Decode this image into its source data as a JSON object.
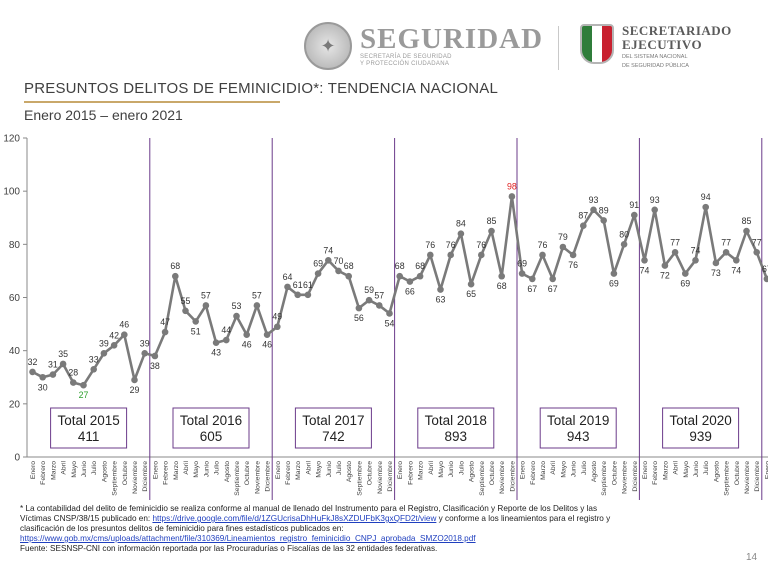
{
  "header": {
    "brand": "SEGURIDAD",
    "brand_sub_1": "SECRETARÍA DE SEGURIDAD",
    "brand_sub_2": "Y PROTECCIÓN CIUDADANA",
    "sesnsp_1": "SECRETARIADO",
    "sesnsp_2": "EJECUTIVO",
    "sesnsp_3": "DEL SISTEMA NACIONAL",
    "sesnsp_4": "DE SEGURIDAD PÚBLICA"
  },
  "title": "PRESUNTOS DELITOS DE FEMINICIDIO*: TENDENCIA NACIONAL",
  "subtitle": "Enero 2015 – enero 2021",
  "footnote": {
    "line1": "* La contabilidad del delito de feminicidio se realiza conforme al manual de llenado del Instrumento para el Registro, Clasificación y Reporte de los Delitos y las",
    "line2_pre": "Víctimas CNSP/38/15 publicado en: ",
    "link1": "https://drive.google.com/file/d/1ZGUcrisaDhHuFkJ8sXZDUFbK3gxQFD2t/view",
    "line2_post": " y conforme a los lineamientos para el registro y",
    "line3": "clasificación de los presuntos delitos de feminicidio para fines estadísticos publicados en:",
    "link2": "https://www.gob.mx/cms/uploads/attachment/file/310369/Lineamientos_registro_feminicidio_CNPJ_aprobada_SMZO2018.pdf",
    "line5": "Fuente: SESNSP-CNI con información reportada por las Procuradurías o Fiscalías de las 32 entidades federativas."
  },
  "page_number": "14",
  "chart_data": {
    "type": "line",
    "title": "PRESUNTOS DELITOS DE FEMINICIDIO*: TENDENCIA NACIONAL",
    "xlabel": "",
    "ylabel": "",
    "ylim": [
      0,
      120
    ],
    "yticks": [
      "0",
      "20",
      "40",
      "60",
      "80",
      "100",
      "120"
    ],
    "grid": false,
    "line_color": "#7a7a7a",
    "separator_color": "#6b3b8a",
    "months": [
      "Enero",
      "Febrero",
      "Marzo",
      "Abril",
      "Mayo",
      "Junio",
      "Julio",
      "Agosto",
      "Septiembre",
      "Octubre",
      "Noviembre",
      "Diciembre"
    ],
    "series": [
      {
        "name": "Presuntos delitos de feminicidio",
        "values": [
          32,
          30,
          31,
          35,
          28,
          27,
          33,
          39,
          42,
          46,
          29,
          39,
          38,
          47,
          68,
          55,
          51,
          57,
          43,
          44,
          53,
          46,
          57,
          46,
          49,
          64,
          61,
          61,
          69,
          74,
          70,
          68,
          56,
          59,
          57,
          54,
          68,
          66,
          68,
          76,
          63,
          76,
          84,
          65,
          76,
          85,
          68,
          98,
          69,
          67,
          76,
          67,
          79,
          76,
          87,
          93,
          89,
          69,
          80,
          91,
          74,
          93,
          72,
          77,
          69,
          74,
          94,
          73,
          77,
          74,
          85,
          77,
          67
        ]
      }
    ],
    "highlight": {
      "max": {
        "index": 47,
        "value": 98,
        "color": "#e02020"
      },
      "min": {
        "index": 5,
        "value": 27,
        "color": "#2ca02c"
      }
    },
    "years": [
      {
        "year": "2015",
        "total_label": "Total 2015",
        "total": "411"
      },
      {
        "year": "2016",
        "total_label": "Total 2016",
        "total": "605"
      },
      {
        "year": "2017",
        "total_label": "Total 2017",
        "total": "742"
      },
      {
        "year": "2018",
        "total_label": "Total 2018",
        "total": "893"
      },
      {
        "year": "2019",
        "total_label": "Total 2019",
        "total": "943"
      },
      {
        "year": "2020",
        "total_label": "Total 2020",
        "total": "939"
      },
      {
        "year": "2021",
        "total_label": "",
        "total": ""
      }
    ]
  }
}
